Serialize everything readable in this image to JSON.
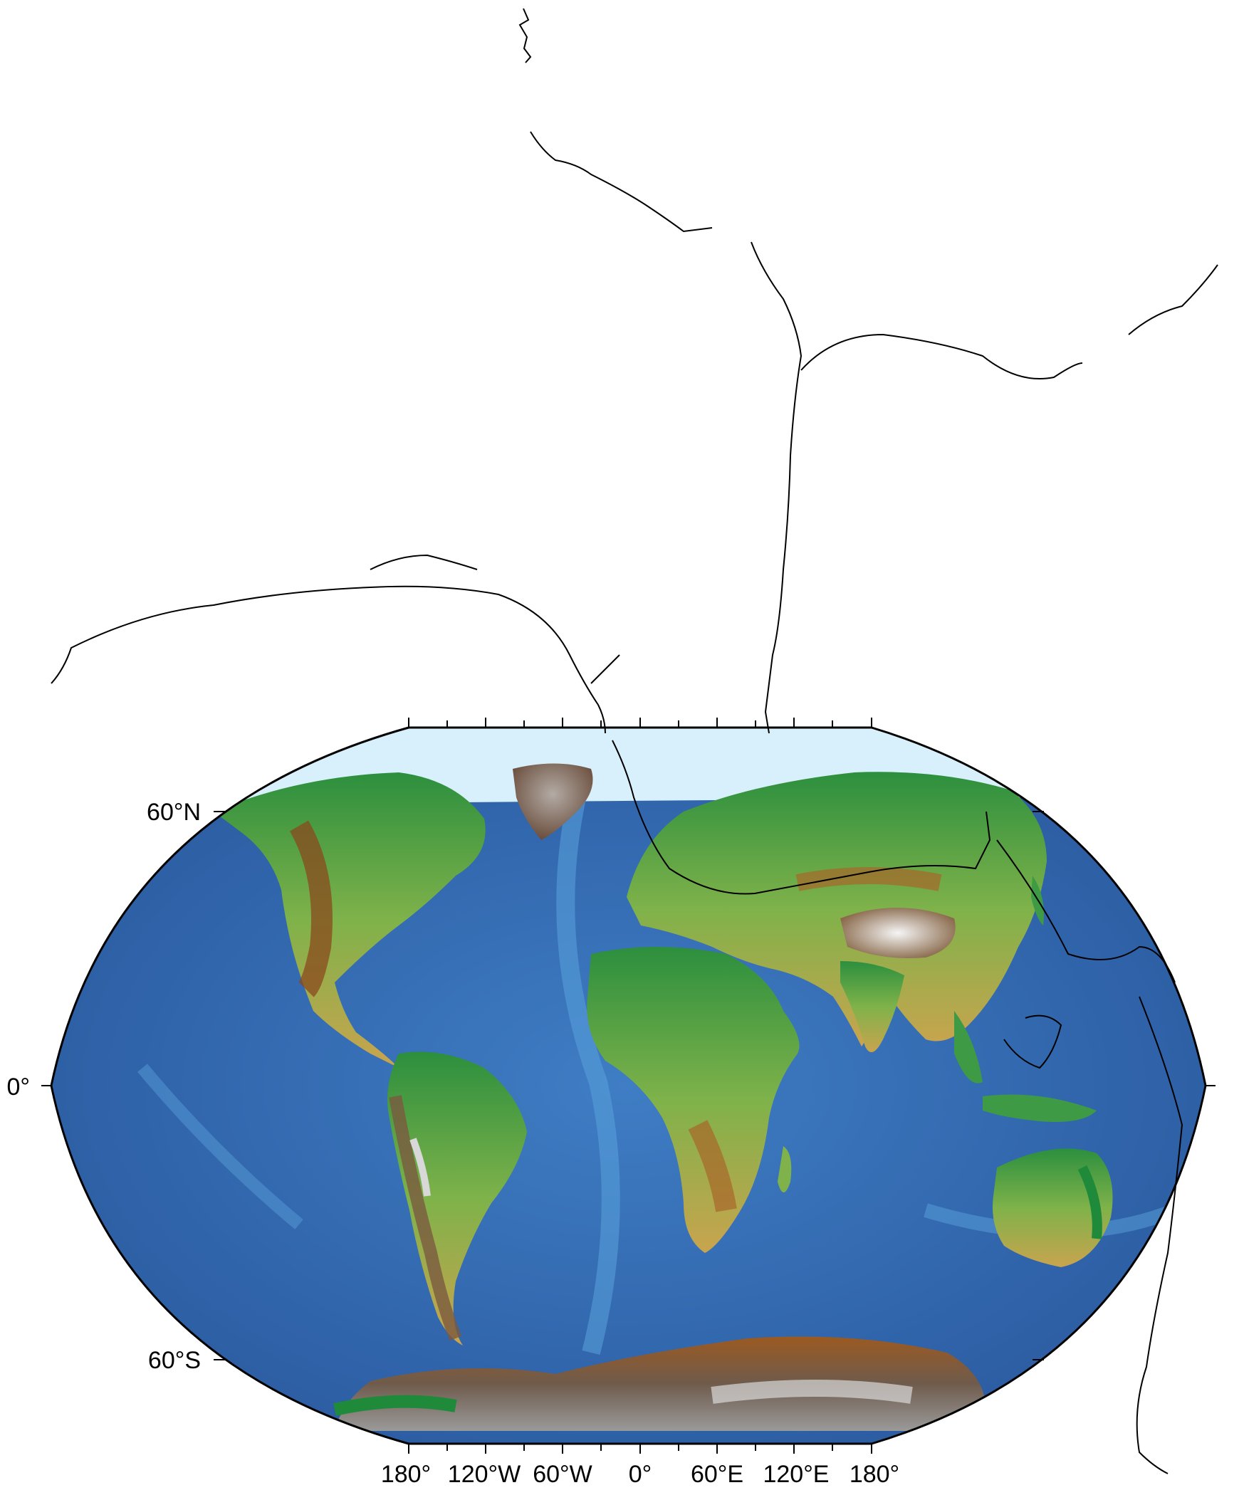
{
  "map": {
    "projection": "Winkel-Tripel-like pseudo-conic world relief",
    "colors": {
      "ocean_deep": "#2d5da3",
      "ocean_mid": "#3f7dc4",
      "ocean_shallow": "#8ec9ec",
      "shelf": "#d8f0fb",
      "lowland": "#1f8a3a",
      "midland": "#7fb24a",
      "upland": "#d8b75a",
      "highland": "#9b5a22",
      "mountain": "#6b5a4a",
      "peak": "#f2f2f2",
      "ice": "#efefef",
      "coastline": "#000000"
    },
    "lat_labels": [
      "60°N",
      "0°",
      "60°S"
    ],
    "lon_labels": [
      "180°",
      "120°W",
      "60°W",
      "0°",
      "60°E",
      "120°E",
      "180°"
    ]
  }
}
